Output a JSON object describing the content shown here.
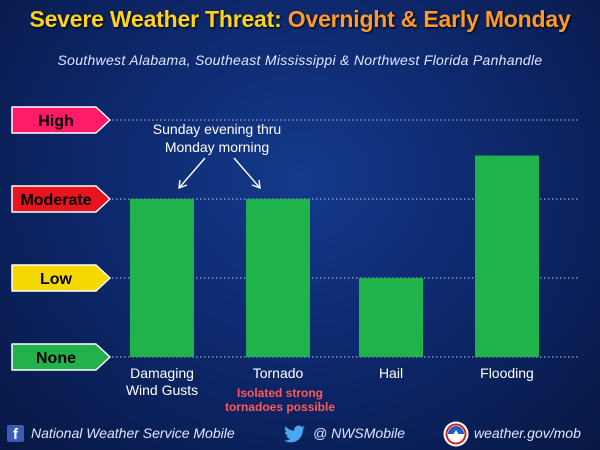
{
  "header": {
    "title_part1": "Severe Weather Threat:",
    "title_part2": "Overnight & Early Monday",
    "subtitle": "Southwest Alabama, Southeast Mississippi & Northwest Florida Panhandle"
  },
  "annotation": {
    "line1": "Sunday evening thru",
    "line2": "Monday morning"
  },
  "chart_data": {
    "type": "bar",
    "levels": [
      "None",
      "Low",
      "Moderate",
      "High"
    ],
    "level_colors": [
      "#22b14c",
      "#f5d800",
      "#e8141e",
      "#ff1a6a"
    ],
    "categories": [
      "Damaging Wind Gusts",
      "Tornado",
      "Hail",
      "Flooding"
    ],
    "category_lines": [
      [
        "Damaging",
        "Wind Gusts"
      ],
      [
        "Tornado"
      ],
      [
        "Hail"
      ],
      [
        "Flooding"
      ]
    ],
    "values": [
      2,
      2,
      1,
      2.55
    ],
    "ylim": [
      0,
      3
    ],
    "note": {
      "category": "Tornado",
      "lines": [
        "Isolated strong",
        "tornadoes possible"
      ],
      "color": "#ff5a5a"
    }
  },
  "footer": {
    "facebook": "National Weather Service Mobile",
    "twitter": "@ NWSMobile",
    "website": "weather.gov/mob"
  }
}
